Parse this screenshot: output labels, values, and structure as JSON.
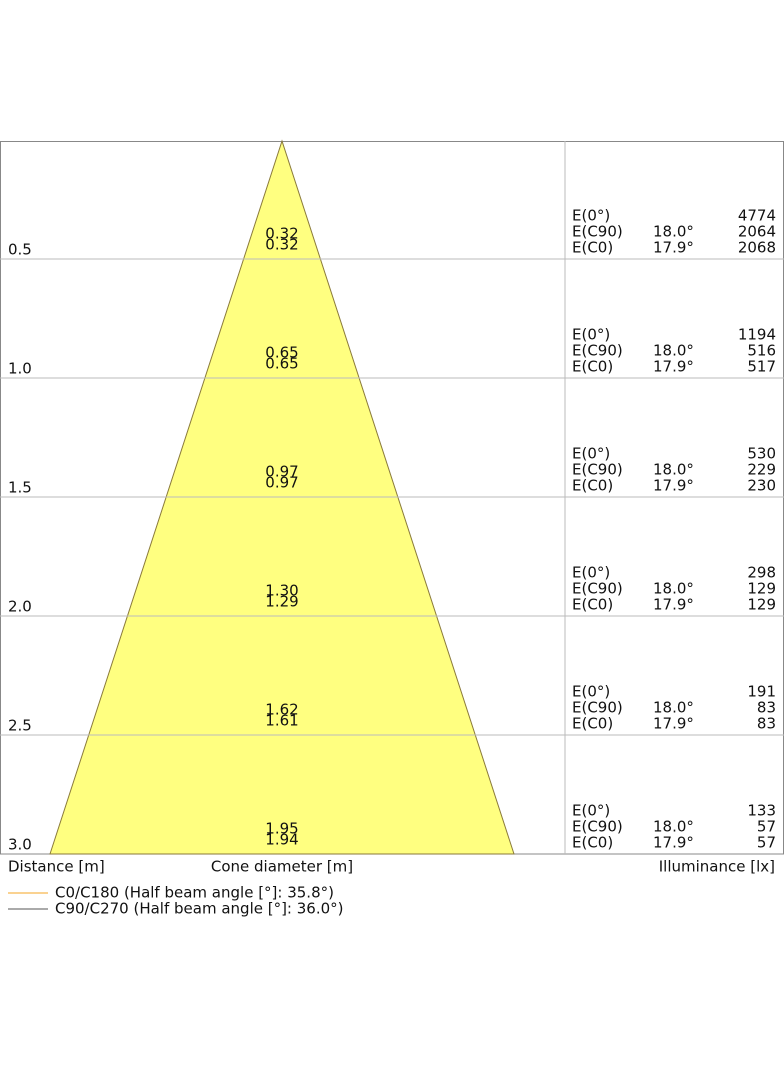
{
  "rows": [
    {
      "distance": "0.5",
      "cone": [
        "0.32",
        "0.32"
      ],
      "labels": [
        "E(0°)",
        "E(C90)",
        "E(C0)"
      ],
      "angles": [
        "18.0°",
        "17.9°"
      ],
      "illuminance": [
        "4774",
        "2064",
        "2068"
      ]
    },
    {
      "distance": "1.0",
      "cone": [
        "0.65",
        "0.65"
      ],
      "labels": [
        "E(0°)",
        "E(C90)",
        "E(C0)"
      ],
      "angles": [
        "18.0°",
        "17.9°"
      ],
      "illuminance": [
        "1194",
        "516",
        "517"
      ]
    },
    {
      "distance": "1.5",
      "cone": [
        "0.97",
        "0.97"
      ],
      "labels": [
        "E(0°)",
        "E(C90)",
        "E(C0)"
      ],
      "angles": [
        "18.0°",
        "17.9°"
      ],
      "illuminance": [
        "530",
        "229",
        "230"
      ]
    },
    {
      "distance": "2.0",
      "cone": [
        "1.30",
        "1.29"
      ],
      "labels": [
        "E(0°)",
        "E(C90)",
        "E(C0)"
      ],
      "angles": [
        "18.0°",
        "17.9°"
      ],
      "illuminance": [
        "298",
        "129",
        "129"
      ]
    },
    {
      "distance": "2.5",
      "cone": [
        "1.62",
        "1.61"
      ],
      "labels": [
        "E(0°)",
        "E(C90)",
        "E(C0)"
      ],
      "angles": [
        "18.0°",
        "17.9°"
      ],
      "illuminance": [
        "191",
        "83",
        "83"
      ]
    },
    {
      "distance": "3.0",
      "cone": [
        "1.95",
        "1.94"
      ],
      "labels": [
        "E(0°)",
        "E(C90)",
        "E(C0)"
      ],
      "angles": [
        "18.0°",
        "17.9°"
      ],
      "illuminance": [
        "133",
        "57",
        "57"
      ]
    }
  ],
  "axis": {
    "distance": "Distance [m]",
    "cone": "Cone diameter [m]",
    "illuminance": "Illuminance [lx]"
  },
  "legend": [
    {
      "label": "C0/C180 (Half beam angle [°]: 35.8°)",
      "color": "#f5a623"
    },
    {
      "label": "C90/C270 (Half beam angle [°]: 36.0°)",
      "color": "#555555"
    }
  ]
}
